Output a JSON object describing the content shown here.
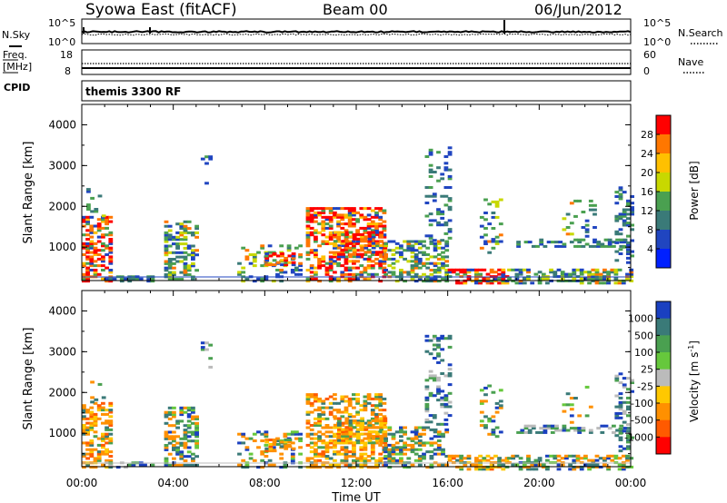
{
  "header": {
    "station": "Syowa East (fitACF)",
    "beam": "Beam 00",
    "date": "06/Jun/2012"
  },
  "sky_panel": {
    "left_label": "N.Sky",
    "right_label": "N.Search",
    "left_ticks": [
      "10^5",
      "10^0"
    ],
    "right_ticks": [
      "10^5",
      "10^0"
    ]
  },
  "freq_panel": {
    "left_label_1": "Freq.",
    "left_label_2": "[MHz]",
    "left_ticks": [
      "18",
      "8"
    ],
    "right_ticks": [
      "60",
      "0"
    ],
    "right_label": "Nave"
  },
  "cpid": {
    "label": "CPID",
    "program": "themis 3300 RF"
  },
  "chart_data": [
    {
      "type": "heatmap",
      "quantity": "Power",
      "ylabel": "Slant Range [km]",
      "ylim": [
        180,
        4500
      ],
      "yticks": [
        "1000",
        "2000",
        "3000",
        "4000"
      ],
      "colorbar_label": "Power [dB]",
      "colorbar_ticks": [
        "28",
        "24",
        "20",
        "16",
        "12",
        "8",
        "4"
      ],
      "colorbar_colors": [
        "#ff0000",
        "#ff7700",
        "#ffc000",
        "#c8d800",
        "#4aa050",
        "#3a7a78",
        "#2045c0",
        "#0020ff"
      ]
    },
    {
      "type": "heatmap",
      "quantity": "Velocity",
      "ylabel": "Slant Range [km]",
      "ylim": [
        180,
        4500
      ],
      "yticks": [
        "1000",
        "2000",
        "3000",
        "4000"
      ],
      "colorbar_label": "Velocity [m s",
      "colorbar_label_sup": "-1",
      "colorbar_label_end": "]",
      "colorbar_ticks": [
        "1000",
        "500",
        "100",
        "25",
        "-25",
        "-100",
        "-500",
        "-1000"
      ],
      "colorbar_colors": [
        "#1a40c0",
        "#3a7a78",
        "#4aa050",
        "#66c83c",
        "#bbbbbb",
        "#ffc800",
        "#ff9000",
        "#ff5a00",
        "#ff0000"
      ]
    }
  ],
  "x_axis": {
    "ticks": [
      "00:00",
      "04:00",
      "08:00",
      "12:00",
      "16:00",
      "20:00",
      "00:00"
    ],
    "label": "Time UT"
  }
}
